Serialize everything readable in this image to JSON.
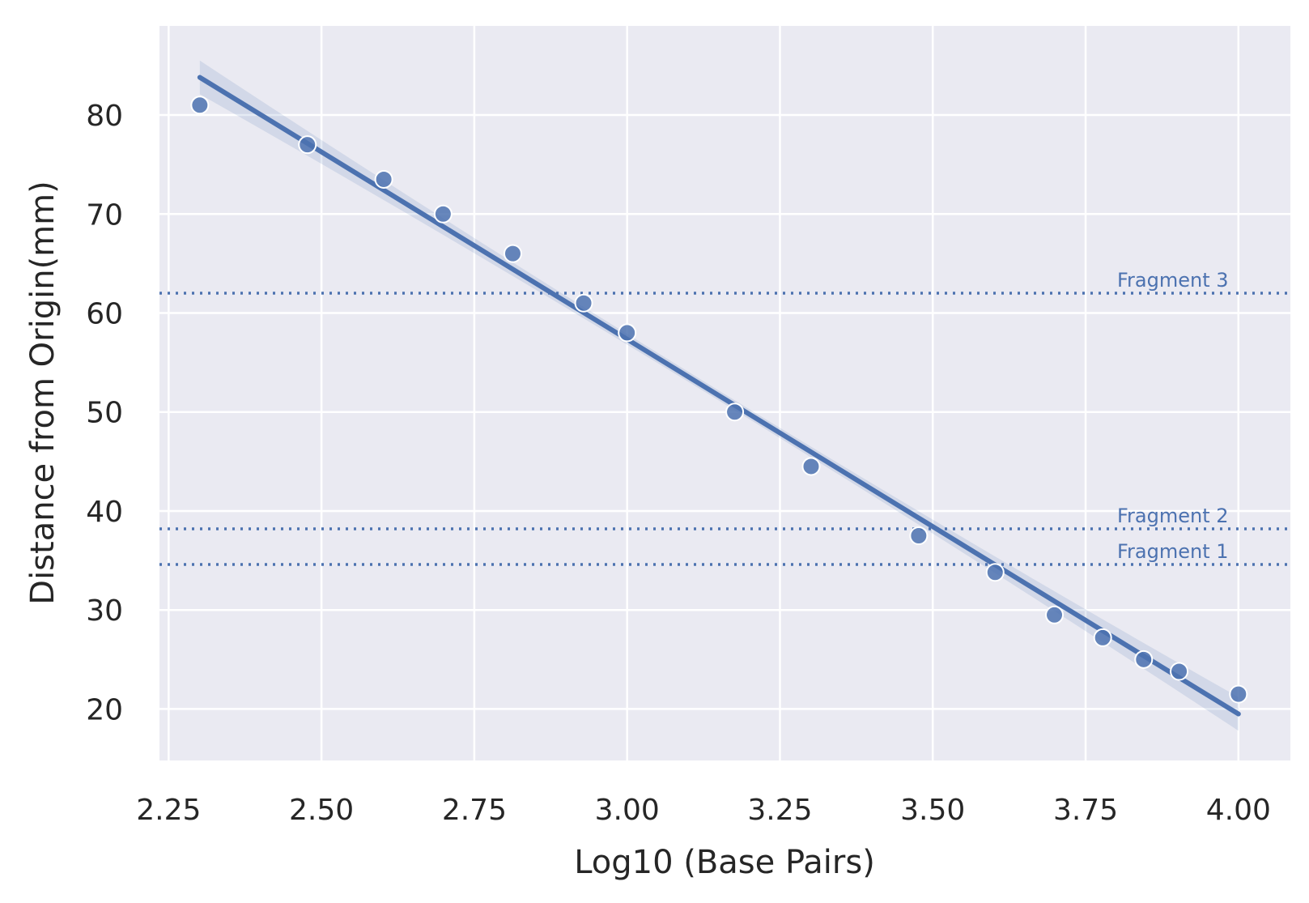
{
  "chart_data": {
    "type": "scatter",
    "xlabel": "Log10 (Base Pairs)",
    "ylabel": "Distance from Origin(mm)",
    "xlim": [
      2.235,
      4.085
    ],
    "ylim": [
      14.8,
      89.0
    ],
    "xticks": [
      2.25,
      2.5,
      2.75,
      3.0,
      3.25,
      3.5,
      3.75,
      4.0
    ],
    "xtick_labels": [
      "2.25",
      "2.50",
      "2.75",
      "3.00",
      "3.25",
      "3.50",
      "3.75",
      "4.00"
    ],
    "yticks": [
      20,
      30,
      40,
      50,
      60,
      70,
      80
    ],
    "ytick_labels": [
      "20",
      "30",
      "40",
      "50",
      "60",
      "70",
      "80"
    ],
    "grid": true,
    "background_color": "#EAEAF2",
    "series_color": "#4C72B0",
    "points": {
      "x": [
        2.301,
        2.477,
        2.602,
        2.699,
        2.813,
        2.929,
        3.0,
        3.176,
        3.301,
        3.477,
        3.602,
        3.699,
        3.778,
        3.845,
        3.903,
        4.0
      ],
      "y": [
        81.0,
        77.0,
        73.5,
        70.0,
        66.0,
        61.0,
        58.0,
        50.0,
        44.5,
        37.5,
        33.8,
        29.5,
        27.2,
        25.0,
        23.8,
        21.5
      ]
    },
    "fit_line": {
      "x": [
        2.301,
        4.0
      ],
      "y": [
        83.8,
        19.5
      ],
      "ci_band": true
    },
    "reference_lines": [
      {
        "label": "Fragment 3",
        "y": 62.0
      },
      {
        "label": "Fragment 2",
        "y": 38.2
      },
      {
        "label": "Fragment 1",
        "y": 34.6
      }
    ]
  }
}
